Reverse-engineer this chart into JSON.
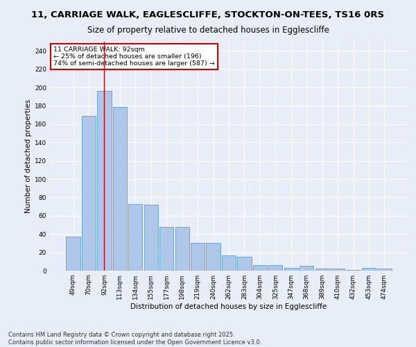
{
  "title1": "11, CARRIAGE WALK, EAGLESCLIFFE, STOCKTON-ON-TEES, TS16 0RS",
  "title2": "Size of property relative to detached houses in Egglescliffe",
  "xlabel": "Distribution of detached houses by size in Egglescliffe",
  "ylabel": "Number of detached properties",
  "categories": [
    "49sqm",
    "70sqm",
    "92sqm",
    "113sqm",
    "134sqm",
    "155sqm",
    "177sqm",
    "198sqm",
    "219sqm",
    "240sqm",
    "262sqm",
    "283sqm",
    "304sqm",
    "325sqm",
    "347sqm",
    "368sqm",
    "389sqm",
    "410sqm",
    "432sqm",
    "453sqm",
    "474sqm"
  ],
  "values": [
    37,
    169,
    196,
    179,
    73,
    72,
    48,
    48,
    30,
    30,
    17,
    15,
    6,
    6,
    3,
    5,
    2,
    2,
    1,
    3,
    2
  ],
  "bar_color": "#aec6e8",
  "bar_edge_color": "#5a9fd4",
  "redline_index": 2,
  "annotation_line1": "11 CARRIAGE WALK: 92sqm",
  "annotation_line2": "← 25% of detached houses are smaller (196)",
  "annotation_line3": "74% of semi-detached houses are larger (587) →",
  "annotation_box_color": "#ffffff",
  "annotation_box_edge": "#cc0000",
  "redline_color": "#cc0000",
  "ylim": [
    0,
    250
  ],
  "yticks": [
    0,
    20,
    40,
    60,
    80,
    100,
    120,
    140,
    160,
    180,
    200,
    220,
    240
  ],
  "footer1": "Contains HM Land Registry data © Crown copyright and database right 2025.",
  "footer2": "Contains public sector information licensed under the Open Government Licence v3.0.",
  "bg_color": "#e8eef7",
  "grid_color": "#ffffff",
  "title_fontsize": 9.5,
  "subtitle_fontsize": 8.5,
  "axis_label_fontsize": 7.5,
  "tick_fontsize": 6.5,
  "annotation_fontsize": 6.8,
  "footer_fontsize": 6.0
}
